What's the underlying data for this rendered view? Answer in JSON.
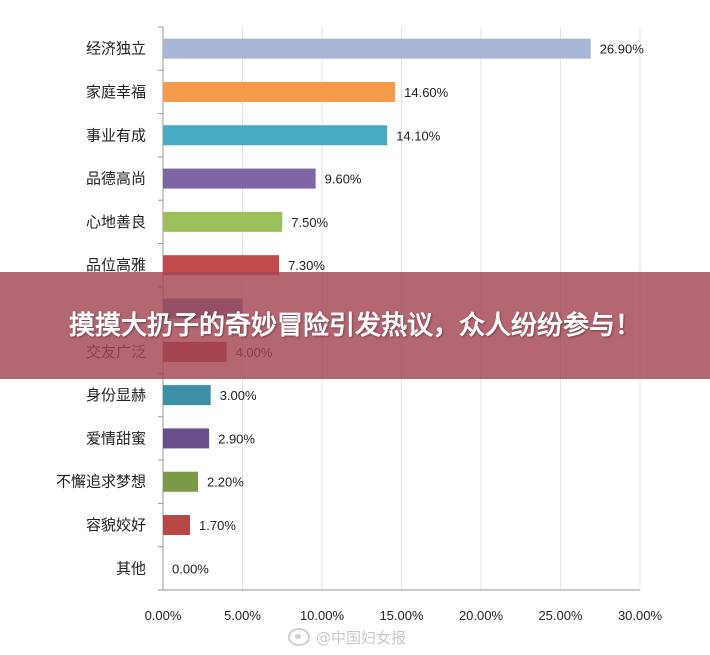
{
  "chart_data": {
    "type": "bar",
    "orientation": "horizontal",
    "categories": [
      "经济独立",
      "家庭幸福",
      "事业有成",
      "品德高尚",
      "心地善良",
      "品位高雅",
      "",
      "交友广泛",
      "身份显赫",
      "爱情甜蜜",
      "不懈追求梦想",
      "容貌姣好",
      "其他"
    ],
    "values": [
      26.9,
      14.6,
      14.1,
      9.6,
      7.5,
      7.3,
      5.0,
      4.0,
      3.0,
      2.9,
      2.2,
      1.7,
      0.0
    ],
    "value_labels": [
      "26.90%",
      "14.60%",
      "14.10%",
      "9.60%",
      "7.50%",
      "7.30%",
      "",
      "4.00%",
      "3.00%",
      "2.90%",
      "2.20%",
      "1.70%",
      "0.00%"
    ],
    "colors": [
      "#a9b7d6",
      "#f39b4b",
      "#45acc3",
      "#7f65a3",
      "#9cc15c",
      "#bf4c4b",
      "#4f81bd",
      "#a8413e",
      "#3b8fa6",
      "#6a4f8c",
      "#7a9a47",
      "#b84644",
      "#4f81bd"
    ],
    "x_ticks": [
      "0.00%",
      "5.00%",
      "10.00%",
      "15.00%",
      "20.00%",
      "25.00%",
      "30.00%"
    ],
    "xlim": [
      0,
      30
    ],
    "grid": true,
    "title": "",
    "xlabel": "",
    "ylabel": ""
  },
  "overlay": {
    "banner_text": "摸摸大扔子的奇妙冒险引发热议，众人纷纷参与！",
    "banner_color": "#a54652"
  },
  "watermark": {
    "text": "@中国妇女报",
    "icon": "weibo-icon"
  }
}
